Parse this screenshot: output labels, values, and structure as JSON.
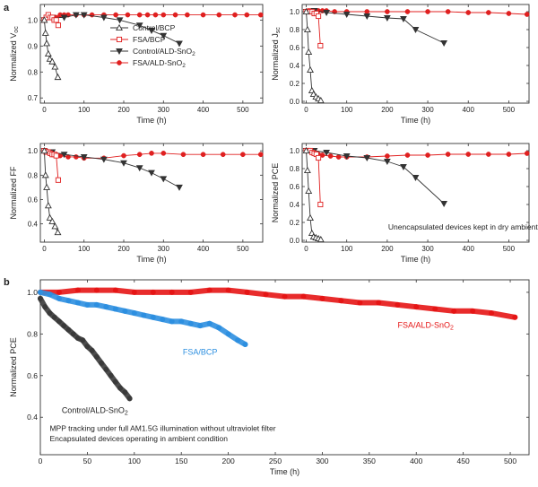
{
  "panel_labels": {
    "a": "a",
    "b": "b"
  },
  "chart_data": [
    {
      "id": "voc",
      "type": "line",
      "ylabel": "Normalized V",
      "ylabel_sub": "oc",
      "xlabel": "Time (h)",
      "xlim": [
        -10,
        550
      ],
      "ylim": [
        0.68,
        1.06
      ],
      "xticks": [
        0,
        100,
        200,
        300,
        400,
        500
      ],
      "yticks": [
        0.7,
        0.8,
        0.9,
        1.0
      ],
      "xtick_labels": [
        "0",
        "100",
        "200",
        "300",
        "400",
        "500"
      ],
      "ytick_labels": [
        "0.7",
        "0.8",
        "0.9",
        "1.0"
      ],
      "legend": [
        {
          "label": "Control/BCP",
          "series": "Control/BCP"
        },
        {
          "label": "FSA/BCP",
          "series": "FSA/BCP"
        },
        {
          "label": "Control/ALD-SnO",
          "label_sub": "2",
          "series": "Control/ALD-SnO2"
        },
        {
          "label": "FSA/ALD-SnO",
          "label_sub": "2",
          "series": "FSA/ALD-SnO2"
        }
      ],
      "series": [
        {
          "name": "Control/BCP",
          "color": "#333333",
          "marker": "triangle-open",
          "x": [
            0,
            3,
            6,
            10,
            14,
            20,
            27,
            34
          ],
          "y": [
            1.0,
            0.95,
            0.91,
            0.87,
            0.85,
            0.84,
            0.82,
            0.78
          ]
        },
        {
          "name": "FSA/BCP",
          "color": "#e02020",
          "marker": "square-open",
          "x": [
            0,
            5,
            10,
            15,
            20,
            25,
            30,
            35
          ],
          "y": [
            1.0,
            1.01,
            1.02,
            1.01,
            1.01,
            1.0,
            1.0,
            0.98
          ]
        },
        {
          "name": "Control/ALD-SnO2",
          "color": "#333333",
          "marker": "triangle-down-filled",
          "x": [
            0,
            20,
            50,
            80,
            100,
            150,
            190,
            240,
            270,
            300,
            340
          ],
          "y": [
            1.0,
            1.01,
            1.01,
            1.02,
            1.02,
            1.01,
            1.0,
            0.98,
            0.96,
            0.94,
            0.91
          ]
        },
        {
          "name": "FSA/ALD-SnO2",
          "color": "#e02020",
          "marker": "circle-filled",
          "x": [
            0,
            5,
            10,
            15,
            20,
            25,
            30,
            40,
            50,
            60,
            80,
            100,
            120,
            150,
            180,
            210,
            240,
            260,
            280,
            300,
            330,
            360,
            400,
            440,
            480,
            510,
            545
          ],
          "y": [
            1.0,
            1.01,
            1.01,
            1.01,
            1.01,
            1.01,
            1.01,
            1.02,
            1.02,
            1.02,
            1.02,
            1.02,
            1.02,
            1.02,
            1.02,
            1.02,
            1.02,
            1.02,
            1.02,
            1.02,
            1.02,
            1.02,
            1.02,
            1.02,
            1.02,
            1.02,
            1.02
          ]
        }
      ]
    },
    {
      "id": "jsc",
      "type": "line",
      "ylabel": "Normalized J",
      "ylabel_sub": "sc",
      "xlabel": "Time (h)",
      "xlim": [
        -10,
        550
      ],
      "ylim": [
        -0.02,
        1.08
      ],
      "xticks": [
        0,
        100,
        200,
        300,
        400,
        500
      ],
      "yticks": [
        0.0,
        0.2,
        0.4,
        0.6,
        0.8,
        1.0
      ],
      "xtick_labels": [
        "0",
        "100",
        "200",
        "300",
        "400",
        "500"
      ],
      "ytick_labels": [
        "0.0",
        "0.2",
        "0.4",
        "0.6",
        "0.8",
        "1.0"
      ],
      "series": [
        {
          "name": "Control/BCP",
          "color": "#333333",
          "marker": "triangle-open",
          "x": [
            0,
            3,
            6,
            10,
            14,
            18,
            24,
            30,
            36
          ],
          "y": [
            1.0,
            0.8,
            0.55,
            0.35,
            0.12,
            0.08,
            0.05,
            0.03,
            0.01
          ]
        },
        {
          "name": "FSA/BCP",
          "color": "#e02020",
          "marker": "square-open",
          "x": [
            0,
            5,
            10,
            15,
            20,
            25,
            30,
            35
          ],
          "y": [
            1.0,
            1.0,
            1.0,
            1.0,
            0.98,
            0.98,
            0.95,
            0.62
          ]
        },
        {
          "name": "Control/ALD-SnO2",
          "color": "#333333",
          "marker": "triangle-down-filled",
          "x": [
            0,
            20,
            50,
            100,
            150,
            200,
            240,
            270,
            340
          ],
          "y": [
            1.0,
            1.01,
            0.99,
            0.97,
            0.95,
            0.93,
            0.92,
            0.8,
            0.65
          ]
        },
        {
          "name": "FSA/ALD-SnO2",
          "color": "#e02020",
          "marker": "circle-filled",
          "x": [
            0,
            5,
            10,
            15,
            20,
            25,
            30,
            40,
            50,
            70,
            100,
            150,
            200,
            250,
            300,
            350,
            400,
            450,
            500,
            545
          ],
          "y": [
            1.0,
            1.01,
            1.01,
            1.01,
            1.01,
            1.01,
            1.01,
            1.01,
            1.01,
            1.0,
            1.0,
            1.0,
            1.0,
            1.0,
            1.0,
            1.0,
            0.99,
            0.99,
            0.98,
            0.97
          ]
        }
      ]
    },
    {
      "id": "ff",
      "type": "line",
      "ylabel": "Normalized FF",
      "xlabel": "Time (h)",
      "xlim": [
        -10,
        550
      ],
      "ylim": [
        0.25,
        1.06
      ],
      "xticks": [
        0,
        100,
        200,
        300,
        400,
        500
      ],
      "yticks": [
        0.4,
        0.6,
        0.8,
        1.0
      ],
      "xtick_labels": [
        "0",
        "100",
        "200",
        "300",
        "400",
        "500"
      ],
      "ytick_labels": [
        "0.4",
        "0.6",
        "0.8",
        "1.0"
      ],
      "series": [
        {
          "name": "Control/BCP",
          "color": "#333333",
          "marker": "triangle-open",
          "x": [
            0,
            3,
            6,
            10,
            14,
            20,
            27,
            34
          ],
          "y": [
            1.0,
            0.8,
            0.7,
            0.55,
            0.45,
            0.42,
            0.38,
            0.33
          ]
        },
        {
          "name": "FSA/BCP",
          "color": "#e02020",
          "marker": "square-open",
          "x": [
            0,
            5,
            10,
            15,
            20,
            25,
            30,
            35
          ],
          "y": [
            1.0,
            0.99,
            0.99,
            0.98,
            0.97,
            0.97,
            0.96,
            0.76
          ]
        },
        {
          "name": "Control/ALD-SnO2",
          "color": "#333333",
          "marker": "triangle-down-filled",
          "x": [
            0,
            20,
            50,
            100,
            150,
            200,
            240,
            270,
            300,
            340
          ],
          "y": [
            1.0,
            0.99,
            0.97,
            0.95,
            0.93,
            0.9,
            0.86,
            0.82,
            0.77,
            0.7
          ]
        },
        {
          "name": "FSA/ALD-SnO2",
          "color": "#e02020",
          "marker": "circle-filled",
          "x": [
            0,
            5,
            10,
            15,
            20,
            30,
            40,
            60,
            80,
            100,
            150,
            200,
            240,
            270,
            300,
            350,
            400,
            450,
            500,
            545
          ],
          "y": [
            1.0,
            1.0,
            0.99,
            0.99,
            0.98,
            0.97,
            0.96,
            0.95,
            0.95,
            0.94,
            0.94,
            0.96,
            0.97,
            0.98,
            0.98,
            0.97,
            0.97,
            0.97,
            0.97,
            0.97
          ]
        }
      ]
    },
    {
      "id": "pce_a",
      "type": "line",
      "ylabel": "Normalized PCE",
      "xlabel": "Time (h)",
      "xlim": [
        -10,
        550
      ],
      "ylim": [
        -0.02,
        1.08
      ],
      "xticks": [
        0,
        100,
        200,
        300,
        400,
        500
      ],
      "yticks": [
        0.0,
        0.2,
        0.4,
        0.6,
        0.8,
        1.0
      ],
      "xtick_labels": [
        "0",
        "100",
        "200",
        "300",
        "400",
        "500"
      ],
      "ytick_labels": [
        "0.0",
        "0.2",
        "0.4",
        "0.6",
        "0.8",
        "1.0"
      ],
      "annotations": [
        {
          "text": "Unencapsulated devices kept in dry ambient air",
          "x": 400,
          "y": 0.12
        }
      ],
      "series": [
        {
          "name": "Control/BCP",
          "color": "#333333",
          "marker": "triangle-open",
          "x": [
            0,
            3,
            6,
            10,
            14,
            18,
            24,
            30,
            36
          ],
          "y": [
            1.0,
            0.78,
            0.55,
            0.25,
            0.08,
            0.04,
            0.03,
            0.02,
            0.01
          ]
        },
        {
          "name": "FSA/BCP",
          "color": "#e02020",
          "marker": "square-open",
          "x": [
            0,
            5,
            10,
            15,
            20,
            25,
            30,
            35
          ],
          "y": [
            1.0,
            1.0,
            1.0,
            0.98,
            0.97,
            0.96,
            0.92,
            0.4
          ]
        },
        {
          "name": "Control/ALD-SnO2",
          "color": "#333333",
          "marker": "triangle-down-filled",
          "x": [
            0,
            20,
            50,
            100,
            150,
            200,
            240,
            270,
            340
          ],
          "y": [
            1.0,
            1.0,
            0.98,
            0.94,
            0.92,
            0.88,
            0.82,
            0.7,
            0.41
          ]
        },
        {
          "name": "FSA/ALD-SnO2",
          "color": "#e02020",
          "marker": "circle-filled",
          "x": [
            0,
            5,
            10,
            15,
            20,
            30,
            40,
            60,
            80,
            100,
            150,
            200,
            250,
            300,
            350,
            400,
            450,
            500,
            545
          ],
          "y": [
            1.0,
            1.0,
            1.0,
            0.99,
            0.97,
            0.96,
            0.95,
            0.94,
            0.93,
            0.93,
            0.93,
            0.94,
            0.95,
            0.95,
            0.96,
            0.96,
            0.96,
            0.96,
            0.97
          ]
        }
      ]
    },
    {
      "id": "pce_b",
      "type": "scatter",
      "ylabel": "Normalized PCE",
      "xlabel": "Time (h)",
      "xlim": [
        0,
        520
      ],
      "ylim": [
        0.22,
        1.06
      ],
      "xticks": [
        0,
        50,
        100,
        150,
        200,
        250,
        300,
        350,
        400,
        450,
        500
      ],
      "yticks": [
        0.4,
        0.6,
        0.8,
        1.0
      ],
      "xtick_labels": [
        "0",
        "50",
        "100",
        "150",
        "200",
        "250",
        "300",
        "350",
        "400",
        "450",
        "500"
      ],
      "ytick_labels": [
        "0.4",
        "0.6",
        "0.8",
        "1.0"
      ],
      "annotations": [
        {
          "text": "MPP tracking under full AM1.5G illumination without ultraviolet filter",
          "x": 10,
          "y": 0.335
        },
        {
          "text": "Encapsulated devices operating in ambient condition",
          "x": 10,
          "y": 0.285
        }
      ],
      "series": [
        {
          "name": "FSA/ALD-SnO2",
          "label": "FSA/ALD-SnO",
          "label_sub": "2",
          "color": "#e51515",
          "label_x": 410,
          "label_y": 0.83,
          "x": [
            0,
            20,
            40,
            60,
            80,
            100,
            120,
            140,
            160,
            180,
            200,
            220,
            240,
            260,
            280,
            300,
            320,
            340,
            360,
            380,
            400,
            420,
            440,
            460,
            480,
            505
          ],
          "y": [
            1.0,
            1.0,
            1.01,
            1.01,
            1.01,
            1.0,
            1.0,
            1.0,
            1.0,
            1.01,
            1.01,
            1.0,
            0.99,
            0.98,
            0.98,
            0.97,
            0.96,
            0.95,
            0.95,
            0.94,
            0.93,
            0.92,
            0.91,
            0.91,
            0.9,
            0.88
          ]
        },
        {
          "name": "FSA/BCP",
          "label": "FSA/BCP",
          "color": "#2d8fe0",
          "label_x": 170,
          "label_y": 0.7,
          "x": [
            0,
            10,
            20,
            30,
            40,
            50,
            60,
            70,
            80,
            90,
            100,
            110,
            120,
            130,
            140,
            150,
            160,
            170,
            180,
            190,
            200,
            210,
            218
          ],
          "y": [
            1.0,
            0.99,
            0.97,
            0.96,
            0.95,
            0.94,
            0.94,
            0.93,
            0.92,
            0.91,
            0.9,
            0.89,
            0.88,
            0.87,
            0.86,
            0.86,
            0.85,
            0.84,
            0.85,
            0.83,
            0.8,
            0.77,
            0.75
          ]
        },
        {
          "name": "Control/ALD-SnO2",
          "label": "Control/ALD-SnO",
          "label_sub": "2",
          "color": "#3a3a3a",
          "label_x": 58,
          "label_y": 0.42,
          "x": [
            0,
            5,
            10,
            15,
            20,
            25,
            30,
            35,
            40,
            45,
            50,
            55,
            60,
            65,
            70,
            75,
            80,
            85,
            90,
            95
          ],
          "y": [
            0.97,
            0.93,
            0.9,
            0.88,
            0.86,
            0.84,
            0.82,
            0.8,
            0.78,
            0.77,
            0.74,
            0.72,
            0.69,
            0.66,
            0.63,
            0.6,
            0.57,
            0.54,
            0.52,
            0.49
          ]
        }
      ]
    }
  ]
}
